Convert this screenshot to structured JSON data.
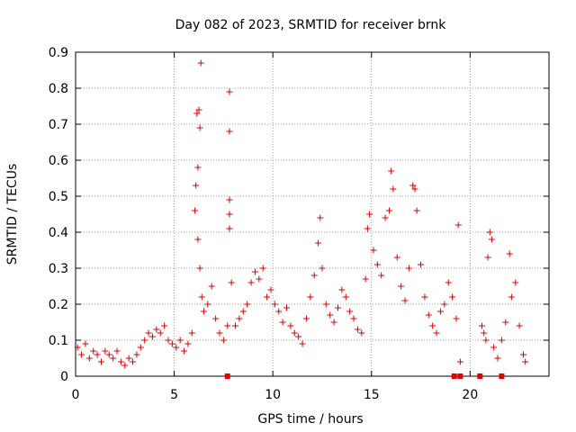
{
  "chart_data": {
    "type": "scatter",
    "title": "Day 082 of 2023, SRMTID for receiver brnk",
    "xlabel": "GPS time / hours",
    "ylabel": "SRMTID / TECUs",
    "xlim": [
      0,
      24
    ],
    "ylim": [
      0,
      0.9
    ],
    "x_ticks": [
      0,
      5,
      10,
      15,
      20
    ],
    "y_ticks": [
      0,
      0.1,
      0.2,
      0.3,
      0.4,
      0.5,
      0.6,
      0.7,
      0.8,
      0.9
    ],
    "x_tick_labels": [
      "0",
      "5",
      "10",
      "15",
      "20"
    ],
    "y_tick_labels": [
      "0",
      "0.1",
      "0.2",
      "0.3",
      "0.4",
      "0.5",
      "0.6",
      "0.7",
      "0.8",
      "0.9"
    ],
    "grid": true,
    "marker": "plus",
    "color": "#e00000",
    "series": [
      {
        "name": "SRMTID",
        "points": [
          [
            0.1,
            0.08
          ],
          [
            0.3,
            0.06
          ],
          [
            0.5,
            0.09
          ],
          [
            0.7,
            0.05
          ],
          [
            0.9,
            0.07
          ],
          [
            1.1,
            0.06
          ],
          [
            1.3,
            0.04
          ],
          [
            1.5,
            0.07
          ],
          [
            1.7,
            0.06
          ],
          [
            1.9,
            0.05
          ],
          [
            2.1,
            0.07
          ],
          [
            2.3,
            0.04
          ],
          [
            2.5,
            0.03
          ],
          [
            2.7,
            0.05
          ],
          [
            2.9,
            0.04
          ],
          [
            3.1,
            0.06
          ],
          [
            3.3,
            0.08
          ],
          [
            3.5,
            0.1
          ],
          [
            3.7,
            0.12
          ],
          [
            3.9,
            0.11
          ],
          [
            4.1,
            0.13
          ],
          [
            4.3,
            0.12
          ],
          [
            4.5,
            0.14
          ],
          [
            4.7,
            0.1
          ],
          [
            4.9,
            0.09
          ],
          [
            5.1,
            0.08
          ],
          [
            5.3,
            0.1
          ],
          [
            5.5,
            0.07
          ],
          [
            5.7,
            0.09
          ],
          [
            5.9,
            0.12
          ],
          [
            6.05,
            0.46
          ],
          [
            6.1,
            0.53
          ],
          [
            6.15,
            0.73
          ],
          [
            6.2,
            0.58
          ],
          [
            6.25,
            0.74
          ],
          [
            6.3,
            0.69
          ],
          [
            6.35,
            0.87
          ],
          [
            6.2,
            0.38
          ],
          [
            6.3,
            0.3
          ],
          [
            6.4,
            0.22
          ],
          [
            6.5,
            0.18
          ],
          [
            6.7,
            0.2
          ],
          [
            6.9,
            0.25
          ],
          [
            7.1,
            0.16
          ],
          [
            7.3,
            0.12
          ],
          [
            7.5,
            0.1
          ],
          [
            7.7,
            0.14
          ],
          [
            7.8,
            0.79
          ],
          [
            7.8,
            0.68
          ],
          [
            7.8,
            0.49
          ],
          [
            7.8,
            0.45
          ],
          [
            7.8,
            0.41
          ],
          [
            7.9,
            0.26
          ],
          [
            8.1,
            0.14
          ],
          [
            8.3,
            0.16
          ],
          [
            8.5,
            0.18
          ],
          [
            8.7,
            0.2
          ],
          [
            8.9,
            0.26
          ],
          [
            9.1,
            0.29
          ],
          [
            9.3,
            0.27
          ],
          [
            9.5,
            0.3
          ],
          [
            9.7,
            0.22
          ],
          [
            9.9,
            0.24
          ],
          [
            10.1,
            0.2
          ],
          [
            10.3,
            0.18
          ],
          [
            10.5,
            0.15
          ],
          [
            10.7,
            0.19
          ],
          [
            10.9,
            0.14
          ],
          [
            11.1,
            0.12
          ],
          [
            11.3,
            0.11
          ],
          [
            11.5,
            0.09
          ],
          [
            11.7,
            0.16
          ],
          [
            11.9,
            0.22
          ],
          [
            12.1,
            0.28
          ],
          [
            12.3,
            0.37
          ],
          [
            12.4,
            0.44
          ],
          [
            12.5,
            0.3
          ],
          [
            12.7,
            0.2
          ],
          [
            12.9,
            0.17
          ],
          [
            13.1,
            0.15
          ],
          [
            13.3,
            0.19
          ],
          [
            13.5,
            0.24
          ],
          [
            13.7,
            0.22
          ],
          [
            13.9,
            0.18
          ],
          [
            14.1,
            0.16
          ],
          [
            14.3,
            0.13
          ],
          [
            14.5,
            0.12
          ],
          [
            14.7,
            0.27
          ],
          [
            14.8,
            0.41
          ],
          [
            14.9,
            0.45
          ],
          [
            15.1,
            0.35
          ],
          [
            15.3,
            0.31
          ],
          [
            15.5,
            0.28
          ],
          [
            15.7,
            0.44
          ],
          [
            15.9,
            0.46
          ],
          [
            16.0,
            0.57
          ],
          [
            16.1,
            0.52
          ],
          [
            16.3,
            0.33
          ],
          [
            16.5,
            0.25
          ],
          [
            16.7,
            0.21
          ],
          [
            16.9,
            0.3
          ],
          [
            17.1,
            0.53
          ],
          [
            17.2,
            0.52
          ],
          [
            17.3,
            0.46
          ],
          [
            17.5,
            0.31
          ],
          [
            17.7,
            0.22
          ],
          [
            17.9,
            0.17
          ],
          [
            18.1,
            0.14
          ],
          [
            18.3,
            0.12
          ],
          [
            18.5,
            0.18
          ],
          [
            18.7,
            0.2
          ],
          [
            18.9,
            0.26
          ],
          [
            19.1,
            0.22
          ],
          [
            19.3,
            0.16
          ],
          [
            19.4,
            0.42
          ],
          [
            19.5,
            0.04
          ],
          [
            20.6,
            0.14
          ],
          [
            20.7,
            0.12
          ],
          [
            20.8,
            0.1
          ],
          [
            20.9,
            0.33
          ],
          [
            21.0,
            0.4
          ],
          [
            21.1,
            0.38
          ],
          [
            21.2,
            0.08
          ],
          [
            21.4,
            0.05
          ],
          [
            21.6,
            0.1
          ],
          [
            21.8,
            0.15
          ],
          [
            22.0,
            0.34
          ],
          [
            22.1,
            0.22
          ],
          [
            22.3,
            0.26
          ],
          [
            22.5,
            0.14
          ],
          [
            22.7,
            0.06
          ],
          [
            22.8,
            0.04
          ]
        ]
      }
    ],
    "zero_markers": [
      7.7,
      19.2,
      19.5,
      20.5,
      21.6
    ]
  }
}
